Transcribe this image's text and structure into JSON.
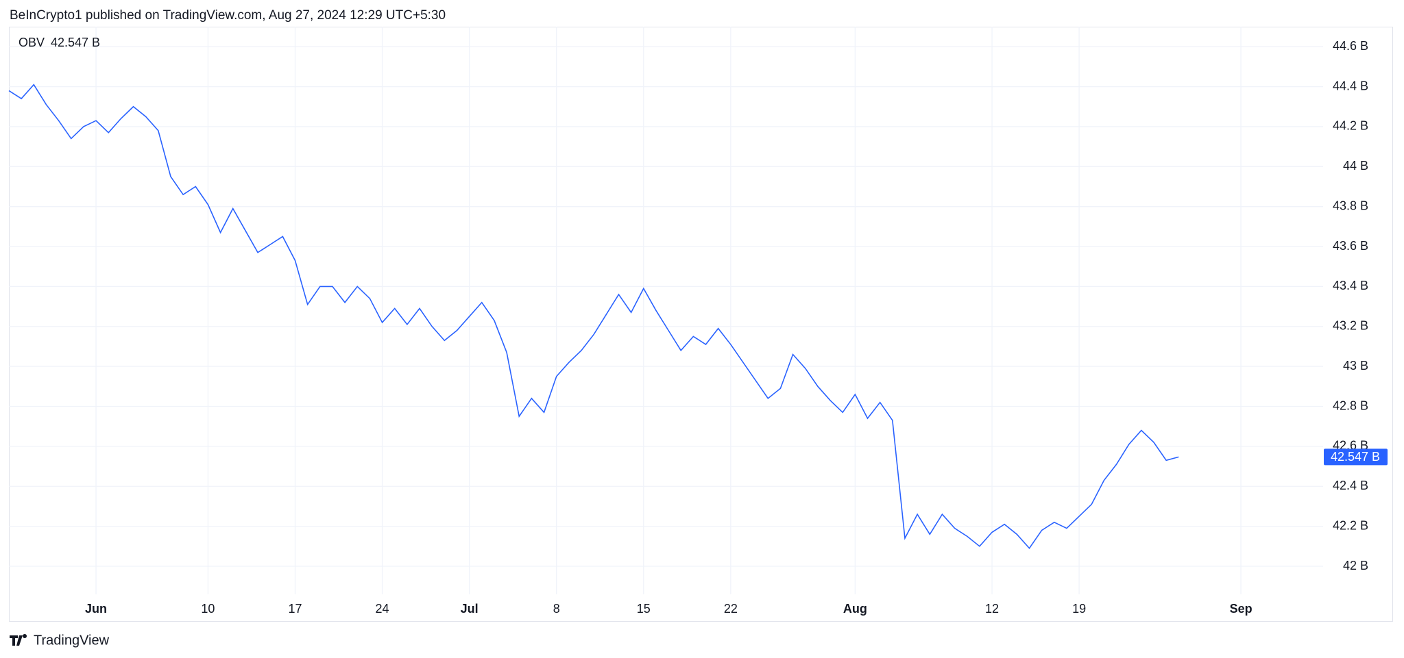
{
  "header": {
    "text": "BeInCrypto1 published on TradingView.com, Aug 27, 2024 12:29 UTC+5:30"
  },
  "footer": {
    "brand": "TradingView"
  },
  "chart_data": {
    "type": "line",
    "x": [
      "May 25",
      "May 26",
      "May 27",
      "May 28",
      "May 29",
      "May 30",
      "May 31",
      "Jun 1",
      "Jun 2",
      "Jun 3",
      "Jun 4",
      "Jun 5",
      "Jun 6",
      "Jun 7",
      "Jun 8",
      "Jun 9",
      "Jun 10",
      "Jun 11",
      "Jun 12",
      "Jun 13",
      "Jun 14",
      "Jun 15",
      "Jun 16",
      "Jun 17",
      "Jun 18",
      "Jun 19",
      "Jun 20",
      "Jun 21",
      "Jun 22",
      "Jun 23",
      "Jun 24",
      "Jun 25",
      "Jun 26",
      "Jun 27",
      "Jun 28",
      "Jun 29",
      "Jun 30",
      "Jul 1",
      "Jul 2",
      "Jul 3",
      "Jul 4",
      "Jul 5",
      "Jul 6",
      "Jul 7",
      "Jul 8",
      "Jul 9",
      "Jul 10",
      "Jul 11",
      "Jul 12",
      "Jul 13",
      "Jul 14",
      "Jul 15",
      "Jul 16",
      "Jul 17",
      "Jul 18",
      "Jul 19",
      "Jul 20",
      "Jul 21",
      "Jul 22",
      "Jul 23",
      "Jul 24",
      "Jul 25",
      "Jul 26",
      "Jul 27",
      "Jul 28",
      "Jul 29",
      "Jul 30",
      "Jul 31",
      "Aug 1",
      "Aug 2",
      "Aug 3",
      "Aug 4",
      "Aug 5",
      "Aug 6",
      "Aug 7",
      "Aug 8",
      "Aug 9",
      "Aug 10",
      "Aug 11",
      "Aug 12",
      "Aug 13",
      "Aug 14",
      "Aug 15",
      "Aug 16",
      "Aug 17",
      "Aug 18",
      "Aug 19",
      "Aug 20",
      "Aug 21",
      "Aug 22",
      "Aug 23",
      "Aug 24",
      "Aug 25",
      "Aug 26",
      "Aug 27"
    ],
    "series": [
      {
        "name": "OBV",
        "color": "#2962ff",
        "last_value_label": "42.547 B",
        "values": [
          44.38,
          44.34,
          44.41,
          44.31,
          44.23,
          44.14,
          44.2,
          44.23,
          44.17,
          44.24,
          44.3,
          44.25,
          44.18,
          43.95,
          43.86,
          43.9,
          43.81,
          43.67,
          43.79,
          43.68,
          43.57,
          43.61,
          43.65,
          43.53,
          43.31,
          43.4,
          43.4,
          43.32,
          43.4,
          43.34,
          43.22,
          43.29,
          43.21,
          43.29,
          43.2,
          43.13,
          43.18,
          43.25,
          43.32,
          43.23,
          43.07,
          42.75,
          42.84,
          42.77,
          42.95,
          43.02,
          43.08,
          43.16,
          43.26,
          43.36,
          43.27,
          43.39,
          43.28,
          43.18,
          43.08,
          43.15,
          43.11,
          43.19,
          43.11,
          43.02,
          42.93,
          42.84,
          42.89,
          43.06,
          42.99,
          42.9,
          42.83,
          42.77,
          42.86,
          42.74,
          42.82,
          42.73,
          42.14,
          42.26,
          42.16,
          42.26,
          42.19,
          42.15,
          42.1,
          42.17,
          42.21,
          42.16,
          42.09,
          42.18,
          42.22,
          42.19,
          42.25,
          42.31,
          42.43,
          42.51,
          42.61,
          42.68,
          42.62,
          42.53,
          42.547
        ]
      }
    ],
    "xlim": [
      "May 25",
      "Sep 7"
    ],
    "xticks": [
      {
        "value": "Jun 1",
        "label": "Jun"
      },
      {
        "value": "Jun 10",
        "label": "10"
      },
      {
        "value": "Jun 17",
        "label": "17"
      },
      {
        "value": "Jun 24",
        "label": "24"
      },
      {
        "value": "Jul 1",
        "label": "Jul"
      },
      {
        "value": "Jul 8",
        "label": "8"
      },
      {
        "value": "Jul 15",
        "label": "15"
      },
      {
        "value": "Jul 22",
        "label": "22"
      },
      {
        "value": "Aug 1",
        "label": "Aug"
      },
      {
        "value": "Aug 12",
        "label": "12"
      },
      {
        "value": "Aug 19",
        "label": "19"
      },
      {
        "value": "Sep 1",
        "label": "Sep"
      }
    ],
    "ylim": [
      41.9,
      44.7
    ],
    "yticks": [
      {
        "value": 42,
        "label": "42 B"
      },
      {
        "value": 42.2,
        "label": "42.2 B"
      },
      {
        "value": 42.4,
        "label": "42.4 B"
      },
      {
        "value": 42.6,
        "label": "42.6 B"
      },
      {
        "value": 42.8,
        "label": "42.8 B"
      },
      {
        "value": 43,
        "label": "43 B"
      },
      {
        "value": 43.2,
        "label": "43.2 B"
      },
      {
        "value": 43.4,
        "label": "43.4 B"
      },
      {
        "value": 43.6,
        "label": "43.6 B"
      },
      {
        "value": 43.8,
        "label": "43.8 B"
      },
      {
        "value": 44,
        "label": "44 B"
      },
      {
        "value": 44.2,
        "label": "44.2 B"
      },
      {
        "value": 44.4,
        "label": "44.4 B"
      },
      {
        "value": 44.6,
        "label": "44.6 B"
      }
    ],
    "grid": true
  }
}
